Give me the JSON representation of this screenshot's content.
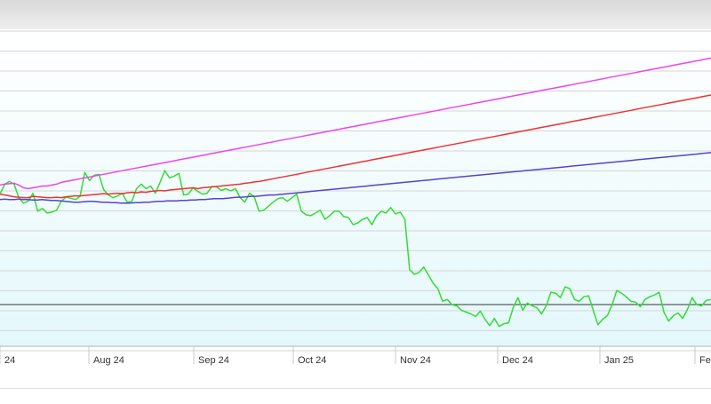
{
  "chart_data": {
    "type": "line",
    "title": "",
    "xlabel": "",
    "ylabel": "",
    "grid": true,
    "xticks": [
      "24",
      "Aug 24",
      "Sep 24",
      "Oct 24",
      "Nov 24",
      "Dec 24",
      "Jan 25",
      "Fe"
    ],
    "baseline_color": "#333333",
    "series": [
      {
        "color": "#33dd33",
        "values": [
          338,
          360,
          366,
          360,
          330,
          318,
          322,
          340,
          300,
          306,
          296,
          298,
          302,
          322,
          331,
          329,
          326,
          333,
          386,
          368,
          380,
          382,
          348,
          336,
          330,
          334,
          340,
          320,
          322,
          350,
          360,
          350,
          356,
          340,
          364,
          390,
          374,
          378,
          384,
          336,
          338,
          352,
          344,
          338,
          340,
          355,
          354,
          346,
          350,
          345,
          350,
          330,
          320,
          340,
          332,
          300,
          302,
          311,
          320,
          328,
          330,
          322,
          330,
          338,
          300,
          292,
          290,
          296,
          302,
          282,
          290,
          300,
          300,
          288,
          286,
          270,
          274,
          282,
          286,
          270,
          290,
          300,
          296,
          308,
          294,
          298,
          282,
          170,
          160,
          164,
          176,
          158,
          140,
          128,
          100,
          104,
          92,
          90,
          80,
          76,
          72,
          66,
          78,
          60,
          46,
          62,
          44,
          50,
          52,
          86,
          108,
          80,
          96,
          90,
          86,
          72,
          90,
          120,
          118,
          108,
          132,
          128,
          104,
          100,
          110,
          112,
          80,
          48,
          60,
          68,
          92,
          124,
          118,
          110,
          100,
          98,
          88,
          104,
          110,
          114,
          120,
          76,
          56,
          68,
          74,
          62,
          82,
          108,
          92,
          90,
          102,
          104
        ]
      },
      {
        "color": "#ee3333",
        "values": [
          338,
          336,
          334,
          332,
          331,
          330,
          330,
          333,
          332,
          331,
          330,
          330,
          331,
          330,
          332,
          333,
          334,
          334,
          335,
          336,
          337,
          338,
          339,
          338,
          339,
          340,
          339,
          341,
          342,
          341,
          343,
          342,
          344,
          345,
          346,
          345,
          347,
          348,
          349,
          350,
          351,
          352,
          350,
          352,
          353,
          354,
          355,
          356,
          357,
          358,
          359,
          360,
          362,
          363,
          365,
          366,
          368,
          370,
          372,
          374,
          376,
          378,
          380,
          382,
          384,
          386,
          388,
          390,
          392,
          394,
          396,
          398,
          400,
          402,
          404,
          406,
          408,
          410,
          412,
          414,
          416,
          418,
          420,
          422,
          424,
          426,
          428,
          430,
          432,
          434,
          436,
          438,
          440,
          442,
          444,
          446,
          448,
          450,
          452,
          454,
          456,
          458,
          460,
          462,
          464,
          466,
          468,
          470,
          472,
          474,
          476,
          478,
          480,
          482,
          484,
          486,
          488,
          490,
          492,
          494,
          496,
          498,
          500,
          502,
          504,
          506,
          508,
          510,
          512,
          514,
          516,
          518,
          520,
          522,
          524,
          526,
          528,
          530,
          532,
          534,
          536,
          538,
          540,
          542,
          544,
          546,
          548,
          550,
          552,
          554,
          556,
          558
        ]
      },
      {
        "color": "#ee44ee",
        "values": [
          358,
          360,
          361,
          362,
          358,
          352,
          350,
          352,
          354,
          356,
          356,
          358,
          360,
          364,
          366,
          368,
          370,
          372,
          374,
          376,
          378,
          380,
          382,
          384,
          386,
          388,
          390,
          392,
          394,
          396,
          398,
          400,
          402,
          404,
          406,
          408,
          410,
          412,
          414,
          416,
          418,
          420,
          422,
          424,
          426,
          428,
          430,
          432,
          434,
          436,
          438,
          440,
          442,
          444,
          446,
          448,
          450,
          452,
          454,
          456,
          458,
          460,
          462,
          464,
          466,
          468,
          470,
          472,
          474,
          476,
          478,
          480,
          482,
          484,
          486,
          488,
          490,
          492,
          494,
          496,
          498,
          500,
          502,
          504,
          506,
          508,
          510,
          512,
          514,
          516,
          518,
          520,
          522,
          524,
          526,
          528,
          530,
          532,
          534,
          536,
          538,
          540,
          542,
          544,
          546,
          548,
          550,
          552,
          554,
          556,
          558,
          560,
          562,
          564,
          566,
          568,
          570,
          572,
          574,
          576,
          578,
          580,
          582,
          584,
          586,
          588,
          590,
          592,
          594,
          596,
          598,
          600,
          602,
          604,
          606,
          608,
          610,
          612,
          614,
          616,
          618,
          620,
          622,
          624,
          626,
          628,
          630,
          632,
          634,
          636,
          638,
          640
        ]
      },
      {
        "color": "#5544cc",
        "values": [
          326,
          327,
          326,
          326,
          327,
          326,
          326,
          325,
          325,
          326,
          325,
          324,
          324,
          323,
          322,
          321,
          320,
          320,
          321,
          322,
          322,
          321,
          320,
          320,
          319,
          319,
          318,
          318,
          318,
          319,
          319,
          320,
          320,
          321,
          322,
          322,
          323,
          323,
          323,
          324,
          324,
          325,
          325,
          326,
          326,
          327,
          328,
          328,
          328,
          329,
          330,
          331,
          331,
          332,
          333,
          333,
          334,
          335,
          336,
          336,
          337,
          338,
          339,
          340,
          341,
          342,
          343,
          344,
          345,
          346,
          347,
          348,
          349,
          350,
          351,
          352,
          353,
          354,
          355,
          356,
          357,
          358,
          359,
          360,
          361,
          362,
          363,
          364,
          365,
          366,
          367,
          368,
          369,
          370,
          371,
          372,
          373,
          374,
          375,
          376,
          377,
          378,
          379,
          380,
          381,
          382,
          383,
          384,
          385,
          386,
          387,
          388,
          389,
          390,
          391,
          392,
          393,
          394,
          395,
          396,
          397,
          398,
          399,
          400,
          401,
          402,
          403,
          404,
          405,
          406,
          407,
          408,
          409,
          410,
          411,
          412,
          413,
          414,
          415,
          416,
          417,
          418,
          419,
          420,
          421,
          422,
          423,
          424,
          425,
          426,
          427,
          428,
          429,
          430
        ]
      }
    ]
  }
}
